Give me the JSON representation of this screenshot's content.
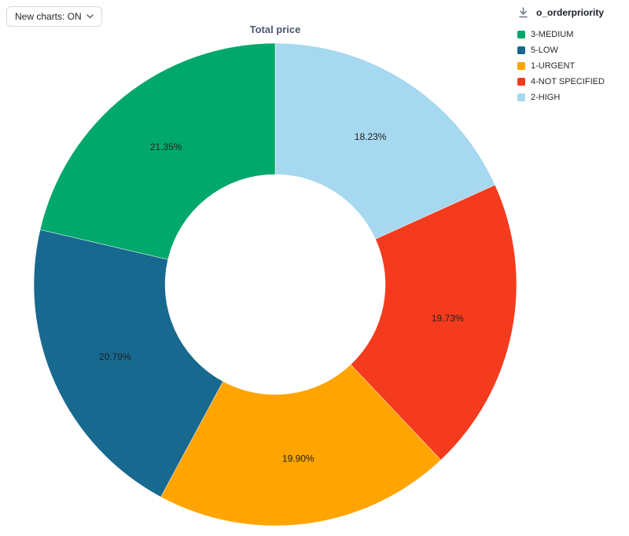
{
  "toolbar": {
    "new_charts_label": "New charts: ON"
  },
  "chart": {
    "title": "Total price"
  },
  "legend": {
    "title": "o_orderpriority",
    "items": [
      {
        "label": "3-MEDIUM",
        "color": "#00a86b"
      },
      {
        "label": "5-LOW",
        "color": "#17698f"
      },
      {
        "label": "1-URGENT",
        "color": "#ffa400"
      },
      {
        "label": "4-NOT SPECIFIED",
        "color": "#f53b1d"
      },
      {
        "label": "2-HIGH",
        "color": "#a6d8ef"
      }
    ]
  },
  "chart_data": {
    "type": "pie",
    "subtype": "donut",
    "title": "Total price",
    "legend_title": "o_orderpriority",
    "legend_position": "right",
    "start_angle_deg": -90,
    "direction": "clockwise",
    "slices": [
      {
        "label": "2-HIGH",
        "value": 18.23,
        "display": "18.23%",
        "color": "#a6d8ef"
      },
      {
        "label": "4-NOT SPECIFIED",
        "value": 19.73,
        "display": "19.73%",
        "color": "#f53b1d"
      },
      {
        "label": "1-URGENT",
        "value": 19.9,
        "display": "19.90%",
        "color": "#ffa400"
      },
      {
        "label": "5-LOW",
        "value": 20.79,
        "display": "20.79%",
        "color": "#17698f"
      },
      {
        "label": "3-MEDIUM",
        "value": 21.35,
        "display": "21.35%",
        "color": "#00a86b"
      }
    ]
  }
}
